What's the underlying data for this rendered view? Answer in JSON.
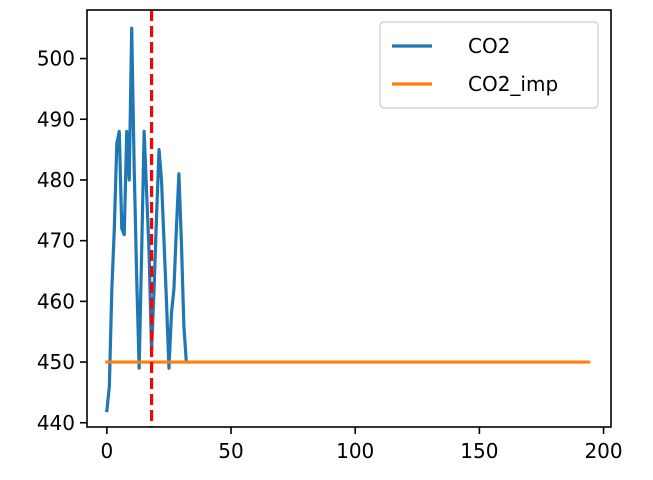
{
  "chart_data": {
    "type": "line",
    "title": "",
    "xlabel": "",
    "ylabel": "",
    "xlim": [
      -8,
      203
    ],
    "ylim": [
      439.3,
      508
    ],
    "xticks": [
      0,
      50,
      100,
      150,
      200
    ],
    "yticks": [
      440,
      450,
      460,
      470,
      480,
      490,
      500
    ],
    "grid": false,
    "legend": "upper right",
    "series": [
      {
        "name": "CO2",
        "color": "#1f77b4",
        "x": [
          0,
          1,
          2,
          3,
          4,
          5,
          6,
          7,
          8,
          9,
          10,
          11,
          12,
          13,
          14,
          15,
          16,
          17,
          18,
          19,
          20,
          21,
          22,
          23,
          24,
          25,
          26,
          27,
          28,
          29,
          30,
          31,
          32,
          33
        ],
        "y": [
          442,
          446,
          462,
          472,
          486,
          488,
          472,
          471,
          488,
          480,
          505,
          482,
          464,
          449,
          468,
          488,
          478,
          468,
          452,
          462,
          474,
          485,
          480,
          470,
          460,
          449,
          458,
          462,
          472,
          481,
          470,
          456,
          450,
          450
        ]
      },
      {
        "name": "CO2_imp",
        "color": "#ff7f0e",
        "x": [
          0,
          194
        ],
        "y": [
          450,
          450
        ]
      }
    ],
    "vlines": [
      {
        "x": 18,
        "color": "#ff0000",
        "style": "dashed"
      }
    ]
  }
}
